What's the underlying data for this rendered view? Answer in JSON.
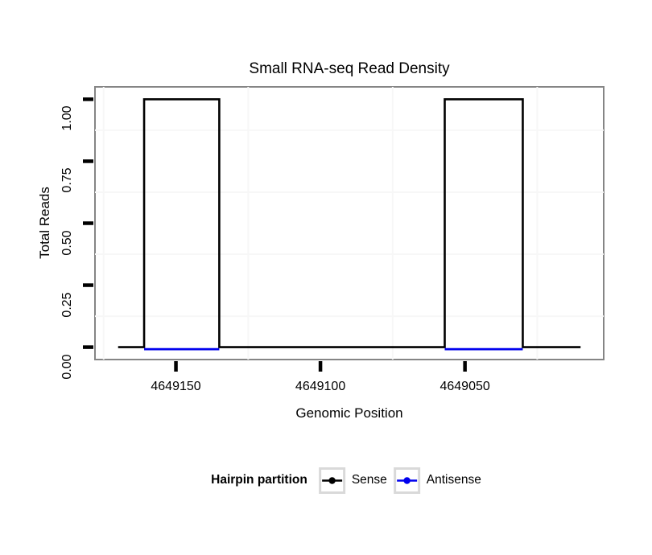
{
  "chart_data": {
    "type": "line",
    "title": "Small RNA-seq Read Density",
    "xlabel": "Genomic Position",
    "ylabel": "Total Reads",
    "x_reversed": true,
    "xlim": [
      4649002,
      4649178
    ],
    "ylim": [
      -0.05,
      1.05
    ],
    "grid": "minor-only",
    "x_ticks": [
      {
        "value": 4649150,
        "label": "4649150"
      },
      {
        "value": 4649100,
        "label": "4649100"
      },
      {
        "value": 4649050,
        "label": "4649050"
      }
    ],
    "y_ticks": [
      {
        "value": 1.0,
        "label": "1.00"
      },
      {
        "value": 0.75,
        "label": "0.75"
      },
      {
        "value": 0.5,
        "label": "0.50"
      },
      {
        "value": 0.25,
        "label": "0.25"
      },
      {
        "value": 0.0,
        "label": "0.00"
      }
    ],
    "x_minor_grid": [
      4649175,
      4649125,
      4649075,
      4649025
    ],
    "y_minor_grid": [
      0.875,
      0.625,
      0.375,
      0.125
    ],
    "series": [
      {
        "name": "Sense",
        "color": "#000000",
        "points": [
          [
            4649170,
            0
          ],
          [
            4649161,
            0
          ],
          [
            4649161,
            1
          ],
          [
            4649135,
            1
          ],
          [
            4649135,
            0
          ],
          [
            4649057,
            0
          ],
          [
            4649057,
            1
          ],
          [
            4649030,
            1
          ],
          [
            4649030,
            0
          ],
          [
            4649010,
            0
          ]
        ]
      },
      {
        "name": "Antisense",
        "color": "#0000EE",
        "segments": [
          [
            [
              4649161,
              0
            ],
            [
              4649135,
              0
            ]
          ],
          [
            [
              4649057,
              0
            ],
            [
              4649030,
              0
            ]
          ]
        ]
      }
    ],
    "legend": {
      "title": "Hairpin partition",
      "position": "bottom",
      "entries": [
        {
          "label": "Sense",
          "color": "#000000"
        },
        {
          "label": "Antisense",
          "color": "#0000EE"
        }
      ]
    },
    "colors": {
      "panel_border": "#858585",
      "grid": "#f7f7f7",
      "tick": "#000000",
      "legend_key_border": "#d9d9d9"
    }
  }
}
